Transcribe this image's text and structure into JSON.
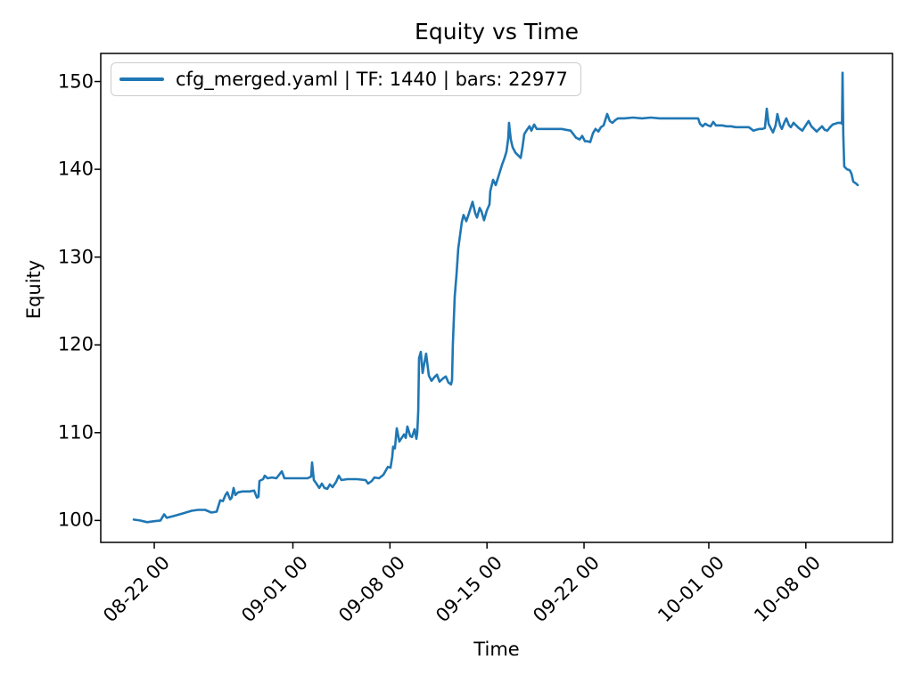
{
  "chart_data": {
    "type": "line",
    "title": "Equity vs Time",
    "xlabel": "Time",
    "ylabel": "Equity",
    "legend": {
      "label": "cfg_merged.yaml | TF: 1440 | bars: 22977",
      "position": "upper left"
    },
    "line_color": "#1f77b4",
    "axis_color": "#000000",
    "legend_border_color": "#cccccc",
    "grid": false,
    "x_unit": "days since 08-22 00:00",
    "xlim": [
      -3.86,
      53.25
    ],
    "ylim": [
      97.5,
      153.2
    ],
    "yticks": [
      100,
      110,
      120,
      130,
      140,
      150
    ],
    "xticks": [
      {
        "day": 0,
        "label": "08-22 00"
      },
      {
        "day": 10,
        "label": "09-01 00"
      },
      {
        "day": 17,
        "label": "09-08 00"
      },
      {
        "day": 24,
        "label": "09-15 00"
      },
      {
        "day": 31,
        "label": "09-22 00"
      },
      {
        "day": 40,
        "label": "10-01 00"
      },
      {
        "day": 47,
        "label": "10-08 00"
      }
    ],
    "series": [
      {
        "name": "cfg_merged.yaml | TF: 1440 | bars: 22977",
        "points": [
          [
            -1.48,
            100.1
          ],
          [
            -1.03,
            100.0
          ],
          [
            -0.51,
            99.8
          ],
          [
            -0.06,
            99.9
          ],
          [
            0.45,
            100.0
          ],
          [
            0.71,
            100.7
          ],
          [
            0.9,
            100.3
          ],
          [
            1.41,
            100.5
          ],
          [
            2.06,
            100.8
          ],
          [
            2.7,
            101.1
          ],
          [
            3.15,
            101.2
          ],
          [
            3.67,
            101.2
          ],
          [
            4.12,
            100.9
          ],
          [
            4.5,
            101.0
          ],
          [
            4.76,
            102.3
          ],
          [
            4.95,
            102.2
          ],
          [
            5.14,
            102.9
          ],
          [
            5.27,
            103.2
          ],
          [
            5.47,
            102.4
          ],
          [
            5.59,
            102.6
          ],
          [
            5.72,
            103.7
          ],
          [
            5.85,
            102.9
          ],
          [
            6.05,
            103.2
          ],
          [
            6.37,
            103.3
          ],
          [
            6.88,
            103.3
          ],
          [
            7.2,
            103.4
          ],
          [
            7.4,
            102.6
          ],
          [
            7.52,
            102.7
          ],
          [
            7.59,
            104.5
          ],
          [
            7.85,
            104.7
          ],
          [
            7.97,
            105.1
          ],
          [
            8.17,
            104.8
          ],
          [
            8.49,
            104.9
          ],
          [
            8.81,
            104.8
          ],
          [
            9.2,
            105.6
          ],
          [
            9.39,
            104.8
          ],
          [
            9.77,
            104.8
          ],
          [
            10.42,
            104.8
          ],
          [
            11.06,
            104.8
          ],
          [
            11.32,
            105.0
          ],
          [
            11.38,
            106.6
          ],
          [
            11.51,
            104.6
          ],
          [
            11.7,
            104.2
          ],
          [
            11.9,
            103.7
          ],
          [
            12.09,
            104.2
          ],
          [
            12.28,
            103.7
          ],
          [
            12.48,
            103.6
          ],
          [
            12.67,
            104.1
          ],
          [
            12.86,
            103.8
          ],
          [
            13.12,
            104.4
          ],
          [
            13.31,
            105.1
          ],
          [
            13.5,
            104.6
          ],
          [
            13.95,
            104.7
          ],
          [
            14.6,
            104.7
          ],
          [
            15.24,
            104.6
          ],
          [
            15.43,
            104.2
          ],
          [
            15.69,
            104.5
          ],
          [
            15.88,
            104.9
          ],
          [
            16.21,
            104.8
          ],
          [
            16.53,
            105.2
          ],
          [
            16.85,
            106.1
          ],
          [
            17.04,
            106.0
          ],
          [
            17.17,
            107.3
          ],
          [
            17.23,
            108.4
          ],
          [
            17.36,
            108.2
          ],
          [
            17.49,
            110.5
          ],
          [
            17.68,
            109.0
          ],
          [
            17.81,
            109.3
          ],
          [
            18.01,
            109.8
          ],
          [
            18.14,
            109.4
          ],
          [
            18.26,
            110.7
          ],
          [
            18.46,
            109.6
          ],
          [
            18.59,
            109.5
          ],
          [
            18.78,
            110.4
          ],
          [
            18.91,
            109.3
          ],
          [
            18.97,
            110.0
          ],
          [
            19.04,
            112.5
          ],
          [
            19.1,
            118.5
          ],
          [
            19.23,
            119.2
          ],
          [
            19.36,
            116.8
          ],
          [
            19.49,
            118.0
          ],
          [
            19.61,
            119.0
          ],
          [
            19.81,
            116.5
          ],
          [
            20.0,
            115.9
          ],
          [
            20.19,
            116.3
          ],
          [
            20.39,
            116.6
          ],
          [
            20.58,
            115.8
          ],
          [
            20.84,
            116.2
          ],
          [
            21.03,
            116.4
          ],
          [
            21.22,
            115.7
          ],
          [
            21.41,
            115.5
          ],
          [
            21.48,
            116.0
          ],
          [
            21.54,
            120.0
          ],
          [
            21.67,
            125.5
          ],
          [
            21.8,
            128.0
          ],
          [
            21.93,
            131.0
          ],
          [
            22.06,
            132.5
          ],
          [
            22.19,
            134.0
          ],
          [
            22.31,
            134.8
          ],
          [
            22.51,
            134.1
          ],
          [
            22.7,
            135.0
          ],
          [
            22.96,
            136.3
          ],
          [
            23.15,
            135.0
          ],
          [
            23.28,
            134.5
          ],
          [
            23.47,
            135.6
          ],
          [
            23.6,
            135.2
          ],
          [
            23.79,
            134.2
          ],
          [
            23.99,
            135.3
          ],
          [
            24.18,
            136.0
          ],
          [
            24.24,
            137.5
          ],
          [
            24.44,
            138.8
          ],
          [
            24.63,
            138.2
          ],
          [
            24.89,
            139.5
          ],
          [
            25.08,
            140.5
          ],
          [
            25.27,
            141.3
          ],
          [
            25.4,
            142.0
          ],
          [
            25.53,
            143.5
          ],
          [
            25.59,
            145.3
          ],
          [
            25.72,
            143.4
          ],
          [
            25.85,
            142.5
          ],
          [
            26.05,
            141.9
          ],
          [
            26.24,
            141.6
          ],
          [
            26.43,
            141.3
          ],
          [
            26.56,
            142.5
          ],
          [
            26.69,
            144.0
          ],
          [
            26.88,
            144.5
          ],
          [
            27.07,
            144.9
          ],
          [
            27.2,
            144.4
          ],
          [
            27.4,
            145.1
          ],
          [
            27.59,
            144.6
          ],
          [
            27.78,
            144.6
          ],
          [
            28.1,
            144.6
          ],
          [
            28.42,
            144.6
          ],
          [
            28.75,
            144.6
          ],
          [
            29.07,
            144.6
          ],
          [
            29.39,
            144.6
          ],
          [
            29.71,
            144.5
          ],
          [
            30.03,
            144.4
          ],
          [
            30.23,
            144.0
          ],
          [
            30.42,
            143.6
          ],
          [
            30.68,
            143.4
          ],
          [
            30.87,
            143.8
          ],
          [
            31.06,
            143.2
          ],
          [
            31.25,
            143.2
          ],
          [
            31.45,
            143.1
          ],
          [
            31.64,
            144.1
          ],
          [
            31.83,
            144.6
          ],
          [
            32.03,
            144.3
          ],
          [
            32.22,
            144.8
          ],
          [
            32.41,
            145.0
          ],
          [
            32.67,
            146.3
          ],
          [
            32.86,
            145.5
          ],
          [
            33.05,
            145.3
          ],
          [
            33.25,
            145.6
          ],
          [
            33.44,
            145.8
          ],
          [
            33.63,
            145.8
          ],
          [
            33.89,
            145.8
          ],
          [
            34.53,
            145.9
          ],
          [
            35.18,
            145.8
          ],
          [
            35.82,
            145.9
          ],
          [
            36.46,
            145.8
          ],
          [
            37.11,
            145.8
          ],
          [
            37.75,
            145.8
          ],
          [
            38.39,
            145.8
          ],
          [
            39.04,
            145.8
          ],
          [
            39.23,
            145.8
          ],
          [
            39.36,
            145.2
          ],
          [
            39.55,
            144.9
          ],
          [
            39.74,
            145.2
          ],
          [
            39.94,
            145.0
          ],
          [
            40.13,
            144.9
          ],
          [
            40.32,
            145.4
          ],
          [
            40.51,
            145.0
          ],
          [
            40.71,
            145.0
          ],
          [
            40.96,
            145.0
          ],
          [
            41.29,
            144.9
          ],
          [
            41.61,
            144.9
          ],
          [
            41.93,
            144.8
          ],
          [
            42.25,
            144.8
          ],
          [
            42.57,
            144.8
          ],
          [
            42.89,
            144.8
          ],
          [
            43.22,
            144.4
          ],
          [
            43.41,
            144.5
          ],
          [
            43.67,
            144.6
          ],
          [
            43.86,
            144.6
          ],
          [
            44.05,
            144.7
          ],
          [
            44.18,
            146.9
          ],
          [
            44.31,
            145.2
          ],
          [
            44.5,
            144.6
          ],
          [
            44.63,
            144.2
          ],
          [
            44.82,
            145.0
          ],
          [
            44.95,
            146.3
          ],
          [
            45.14,
            145.0
          ],
          [
            45.27,
            144.6
          ],
          [
            45.47,
            145.4
          ],
          [
            45.59,
            145.8
          ],
          [
            45.79,
            145.0
          ],
          [
            45.92,
            144.8
          ],
          [
            46.11,
            145.3
          ],
          [
            46.3,
            145.0
          ],
          [
            46.5,
            144.7
          ],
          [
            46.75,
            144.4
          ],
          [
            46.95,
            144.9
          ],
          [
            47.2,
            145.5
          ],
          [
            47.4,
            144.9
          ],
          [
            47.59,
            144.6
          ],
          [
            47.78,
            144.3
          ],
          [
            47.97,
            144.6
          ],
          [
            48.17,
            144.9
          ],
          [
            48.36,
            144.5
          ],
          [
            48.55,
            144.4
          ],
          [
            48.75,
            144.8
          ],
          [
            48.94,
            145.1
          ],
          [
            49.13,
            145.2
          ],
          [
            49.32,
            145.3
          ],
          [
            49.52,
            145.3
          ],
          [
            49.61,
            145.2
          ],
          [
            49.65,
            151.0
          ],
          [
            49.7,
            144.0
          ],
          [
            49.77,
            140.3
          ],
          [
            49.97,
            140.0
          ],
          [
            50.16,
            139.9
          ],
          [
            50.29,
            139.5
          ],
          [
            50.42,
            138.6
          ],
          [
            50.61,
            138.4
          ],
          [
            50.74,
            138.2
          ]
        ]
      }
    ]
  }
}
